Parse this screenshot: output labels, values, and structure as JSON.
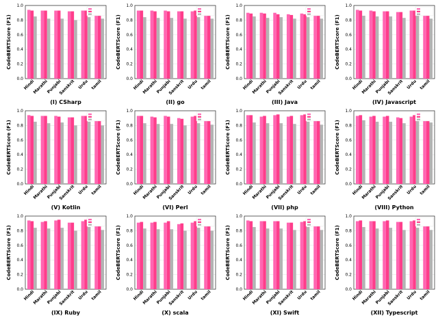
{
  "chart_data": {
    "type": "bar",
    "layout": "grid 3x4",
    "y_axis_label": "CodeBERTScore (F1)",
    "categories": [
      "Hindi",
      "Marathi",
      "Punjabi",
      "Sanskrit",
      "Urdu",
      "tamil"
    ],
    "yticks": [
      "0.0",
      "0.2",
      "0.4",
      "0.6",
      "0.8",
      "1.0"
    ],
    "ylim": [
      0,
      1.0
    ],
    "grid": "horizontal",
    "legend_placement": "top-right",
    "series_colors": [
      "#ff66b2",
      "#ff3d8b",
      "#b3b3b3"
    ],
    "panels": [
      {
        "title": "(I) CSharp",
        "series": [
          {
            "values": [
              0.94,
              0.93,
              0.93,
              0.92,
              0.93,
              0.93
            ]
          },
          {
            "values": [
              0.93,
              0.93,
              0.93,
              0.92,
              0.93,
              0.93
            ]
          },
          {
            "values": [
              0.85,
              0.82,
              0.82,
              0.8,
              0.84,
              0.82
            ]
          }
        ]
      },
      {
        "title": "(II) go",
        "series": [
          {
            "values": [
              0.93,
              0.93,
              0.93,
              0.92,
              0.92,
              0.93
            ]
          },
          {
            "values": [
              0.93,
              0.92,
              0.92,
              0.92,
              0.93,
              0.93
            ]
          },
          {
            "values": [
              0.84,
              0.83,
              0.83,
              0.82,
              0.84,
              0.82
            ]
          }
        ]
      },
      {
        "title": "(III) Java",
        "series": [
          {
            "values": [
              0.9,
              0.9,
              0.9,
              0.88,
              0.89,
              0.89
            ]
          },
          {
            "values": [
              0.89,
              0.89,
              0.88,
              0.87,
              0.88,
              0.88
            ]
          },
          {
            "values": [
              0.85,
              0.83,
              0.84,
              0.82,
              0.84,
              0.82
            ]
          }
        ]
      },
      {
        "title": "(IV) Javascript",
        "series": [
          {
            "values": [
              0.94,
              0.93,
              0.92,
              0.91,
              0.93,
              0.93
            ]
          },
          {
            "values": [
              0.93,
              0.92,
              0.92,
              0.91,
              0.93,
              0.92
            ]
          },
          {
            "values": [
              0.86,
              0.85,
              0.85,
              0.83,
              0.86,
              0.82
            ]
          }
        ]
      },
      {
        "title": "(V) Kotlin",
        "series": [
          {
            "values": [
              0.94,
              0.93,
              0.93,
              0.91,
              0.93,
              0.92
            ]
          },
          {
            "values": [
              0.93,
              0.93,
              0.92,
              0.91,
              0.93,
              0.91
            ]
          },
          {
            "values": [
              0.85,
              0.83,
              0.84,
              0.8,
              0.85,
              0.8
            ]
          }
        ]
      },
      {
        "title": "(VI) Perl",
        "series": [
          {
            "values": [
              0.93,
              0.92,
              0.93,
              0.9,
              0.92,
              0.92
            ]
          },
          {
            "values": [
              0.93,
              0.91,
              0.92,
              0.89,
              0.93,
              0.91
            ]
          },
          {
            "values": [
              0.83,
              0.82,
              0.82,
              0.8,
              0.83,
              0.81
            ]
          }
        ]
      },
      {
        "title": "(VII) php",
        "series": [
          {
            "values": [
              0.94,
              0.92,
              0.94,
              0.92,
              0.94,
              0.92
            ]
          },
          {
            "values": [
              0.94,
              0.93,
              0.95,
              0.93,
              0.95,
              0.92
            ]
          },
          {
            "values": [
              0.84,
              0.83,
              0.83,
              0.82,
              0.85,
              0.81
            ]
          }
        ]
      },
      {
        "title": "(VIII) Python",
        "series": [
          {
            "values": [
              0.93,
              0.92,
              0.92,
              0.91,
              0.92,
              0.92
            ]
          },
          {
            "values": [
              0.94,
              0.93,
              0.93,
              0.9,
              0.94,
              0.93
            ]
          },
          {
            "values": [
              0.87,
              0.85,
              0.85,
              0.83,
              0.86,
              0.84
            ]
          }
        ]
      },
      {
        "title": "(IX) Ruby",
        "series": [
          {
            "values": [
              0.94,
              0.92,
              0.94,
              0.91,
              0.93,
              0.92
            ]
          },
          {
            "values": [
              0.93,
              0.93,
              0.95,
              0.91,
              0.95,
              0.93
            ]
          },
          {
            "values": [
              0.84,
              0.83,
              0.84,
              0.8,
              0.85,
              0.81
            ]
          }
        ]
      },
      {
        "title": "(X) scala",
        "series": [
          {
            "values": [
              0.91,
              0.91,
              0.91,
              0.89,
              0.91,
              0.91
            ]
          },
          {
            "values": [
              0.92,
              0.92,
              0.93,
              0.9,
              0.93,
              0.92
            ]
          },
          {
            "values": [
              0.83,
              0.82,
              0.82,
              0.8,
              0.84,
              0.8
            ]
          }
        ]
      },
      {
        "title": "(XI) Swift",
        "series": [
          {
            "values": [
              0.94,
              0.93,
              0.93,
              0.91,
              0.92,
              0.92
            ]
          },
          {
            "values": [
              0.93,
              0.93,
              0.93,
              0.91,
              0.93,
              0.92
            ]
          },
          {
            "values": [
              0.85,
              0.83,
              0.83,
              0.81,
              0.85,
              0.81
            ]
          }
        ]
      },
      {
        "title": "(XII) Typescript",
        "series": [
          {
            "values": [
              0.93,
              0.93,
              0.93,
              0.92,
              0.93,
              0.92
            ]
          },
          {
            "values": [
              0.94,
              0.93,
              0.94,
              0.92,
              0.94,
              0.93
            ]
          },
          {
            "values": [
              0.85,
              0.83,
              0.84,
              0.81,
              0.84,
              0.81
            ]
          }
        ]
      }
    ]
  }
}
